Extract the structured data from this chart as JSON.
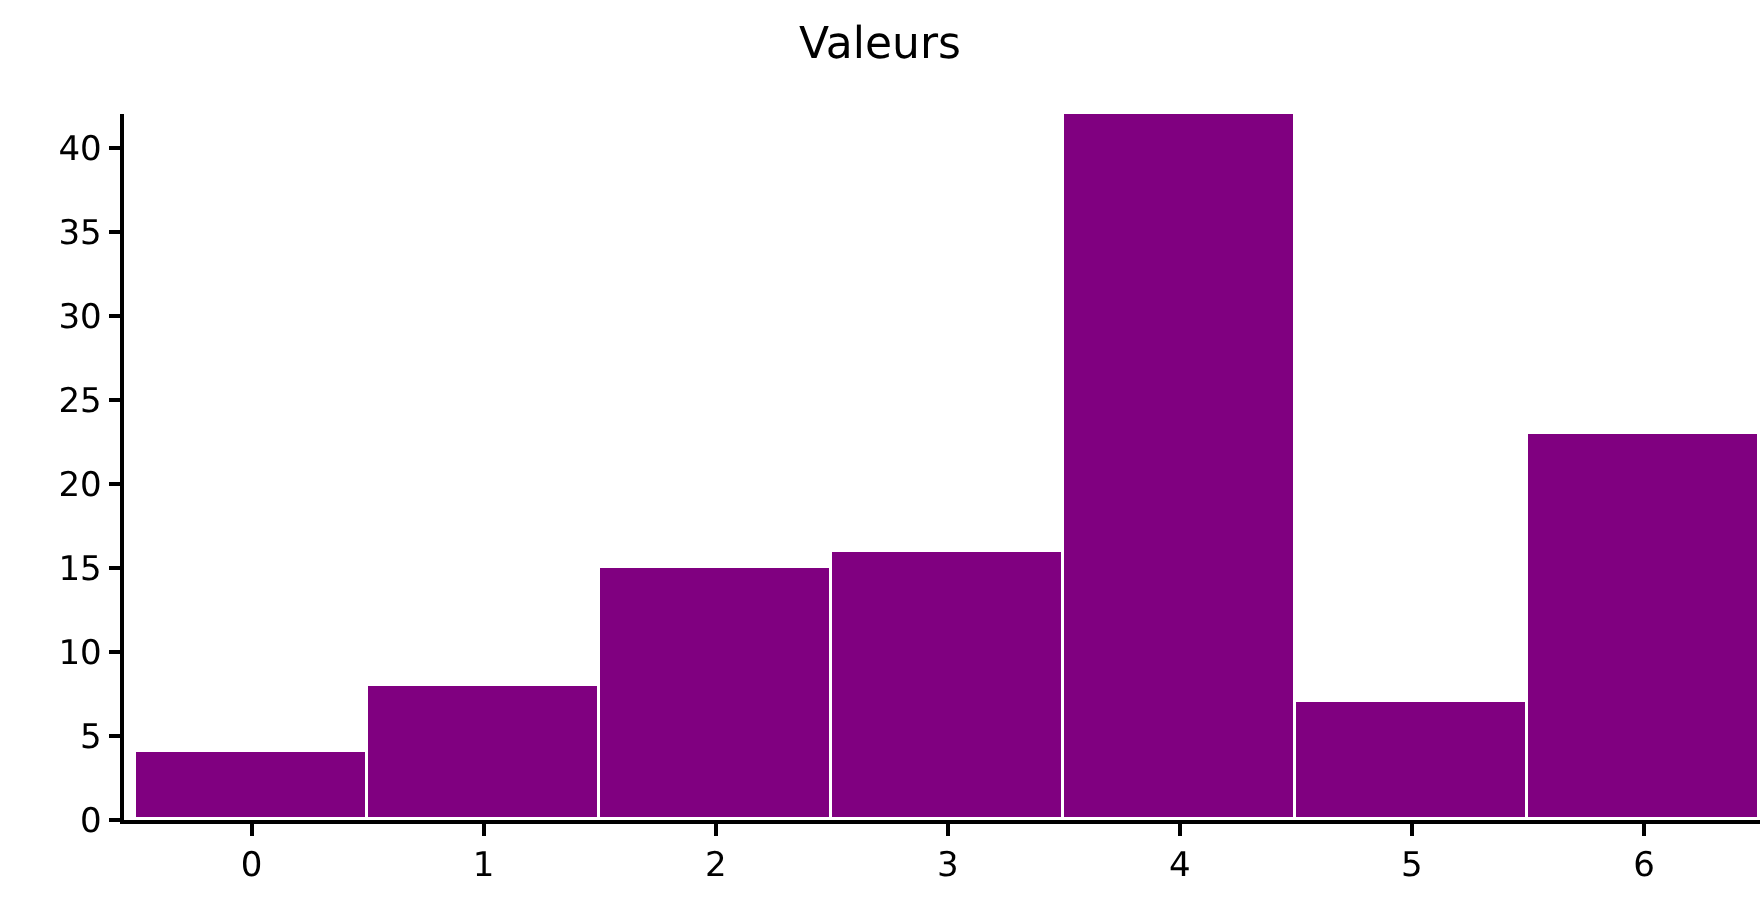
{
  "chart_data": {
    "type": "histogram",
    "title": "Valeurs",
    "bins": [
      -0.5,
      0.5,
      1.5,
      2.5,
      3.5,
      4.5,
      5.5,
      6.5
    ],
    "values": [
      4,
      8,
      15,
      16,
      42,
      7,
      23
    ],
    "color": "#800080",
    "xlim": [
      -0.55,
      6.5
    ],
    "xticks": [
      0,
      1,
      2,
      3,
      4,
      5,
      6
    ],
    "ylim": [
      0,
      42
    ],
    "yticks": [
      0,
      5,
      10,
      15,
      20,
      25,
      30,
      35,
      40
    ]
  }
}
